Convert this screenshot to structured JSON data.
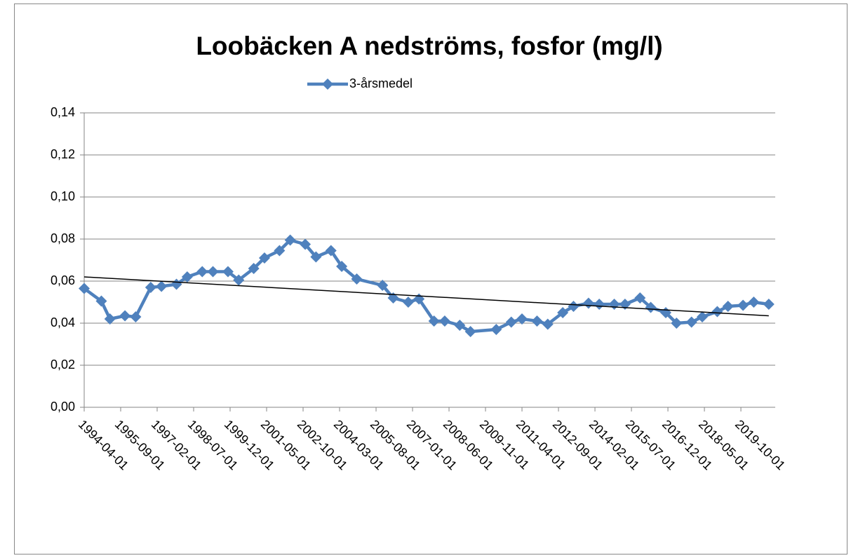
{
  "chart_data": {
    "type": "line",
    "title": "Loobäcken A nedströms, fosfor (mg/l)",
    "x": [
      "1994-04-01",
      "1994-12-01",
      "1995-04-01",
      "1995-11-01",
      "1996-04-01",
      "1996-11-01",
      "1997-04-01",
      "1997-11-01",
      "1998-04-01",
      "1998-11-01",
      "1999-04-01",
      "1999-11-01",
      "2000-04-01",
      "2000-11-01",
      "2001-04-01",
      "2001-11-01",
      "2002-04-01",
      "2002-11-01",
      "2003-04-01",
      "2003-11-01",
      "2004-04-01",
      "2004-11-01",
      "2005-11-01",
      "2006-04-01",
      "2006-11-01",
      "2007-04-01",
      "2007-11-01",
      "2008-04-01",
      "2008-11-01",
      "2009-04-01",
      "2010-04-01",
      "2010-11-01",
      "2011-04-01",
      "2011-11-01",
      "2012-04-01",
      "2012-11-01",
      "2013-04-01",
      "2013-11-01",
      "2014-04-01",
      "2014-11-01",
      "2015-04-01",
      "2015-11-01",
      "2016-04-01",
      "2016-11-01",
      "2017-04-01",
      "2017-11-01",
      "2018-04-01",
      "2018-11-01",
      "2019-04-01",
      "2019-11-01",
      "2020-04-01",
      "2020-11-01"
    ],
    "series": [
      {
        "name": "3-årsmedel",
        "color": "#4f81bd",
        "values": [
          0.0565,
          0.0505,
          0.042,
          0.0435,
          0.043,
          0.057,
          0.0575,
          0.0585,
          0.062,
          0.0645,
          0.0645,
          0.0645,
          0.0605,
          0.066,
          0.071,
          0.0745,
          0.0795,
          0.0775,
          0.0715,
          0.0745,
          0.067,
          0.061,
          0.058,
          0.052,
          0.05,
          0.0515,
          0.041,
          0.041,
          0.039,
          0.036,
          0.037,
          0.0405,
          0.042,
          0.041,
          0.0395,
          0.045,
          0.048,
          0.0495,
          0.049,
          0.049,
          0.049,
          0.052,
          0.0475,
          0.045,
          0.04,
          0.0405,
          0.043,
          0.0455,
          0.048,
          0.0485,
          0.05,
          0.049
        ]
      }
    ],
    "trendline": {
      "color": "#000000",
      "x": [
        "1994-04-01",
        "2020-11-01"
      ],
      "values": [
        0.062,
        0.0435
      ]
    },
    "xlim": [
      "1994-04-01",
      "2021-02-01"
    ],
    "xticks": [
      "1994-04-01",
      "1995-09-01",
      "1997-02-01",
      "1998-07-01",
      "1999-12-01",
      "2001-05-01",
      "2002-10-01",
      "2004-03-01",
      "2005-08-01",
      "2007-01-01",
      "2008-06-01",
      "2009-11-01",
      "2011-04-01",
      "2012-09-01",
      "2014-02-01",
      "2015-07-01",
      "2016-12-01",
      "2018-05-01",
      "2019-10-01"
    ],
    "ylim": [
      0,
      0.14
    ],
    "yticks": [
      {
        "value": 0,
        "label": "0,00"
      },
      {
        "value": 0.02,
        "label": "0,02"
      },
      {
        "value": 0.04,
        "label": "0,04"
      },
      {
        "value": 0.06,
        "label": "0,06"
      },
      {
        "value": 0.08,
        "label": "0,08"
      },
      {
        "value": 0.1,
        "label": "0,10"
      },
      {
        "value": 0.12,
        "label": "0,12"
      },
      {
        "value": 0.14,
        "label": "0,14"
      }
    ],
    "grid": true,
    "legend": "top"
  }
}
